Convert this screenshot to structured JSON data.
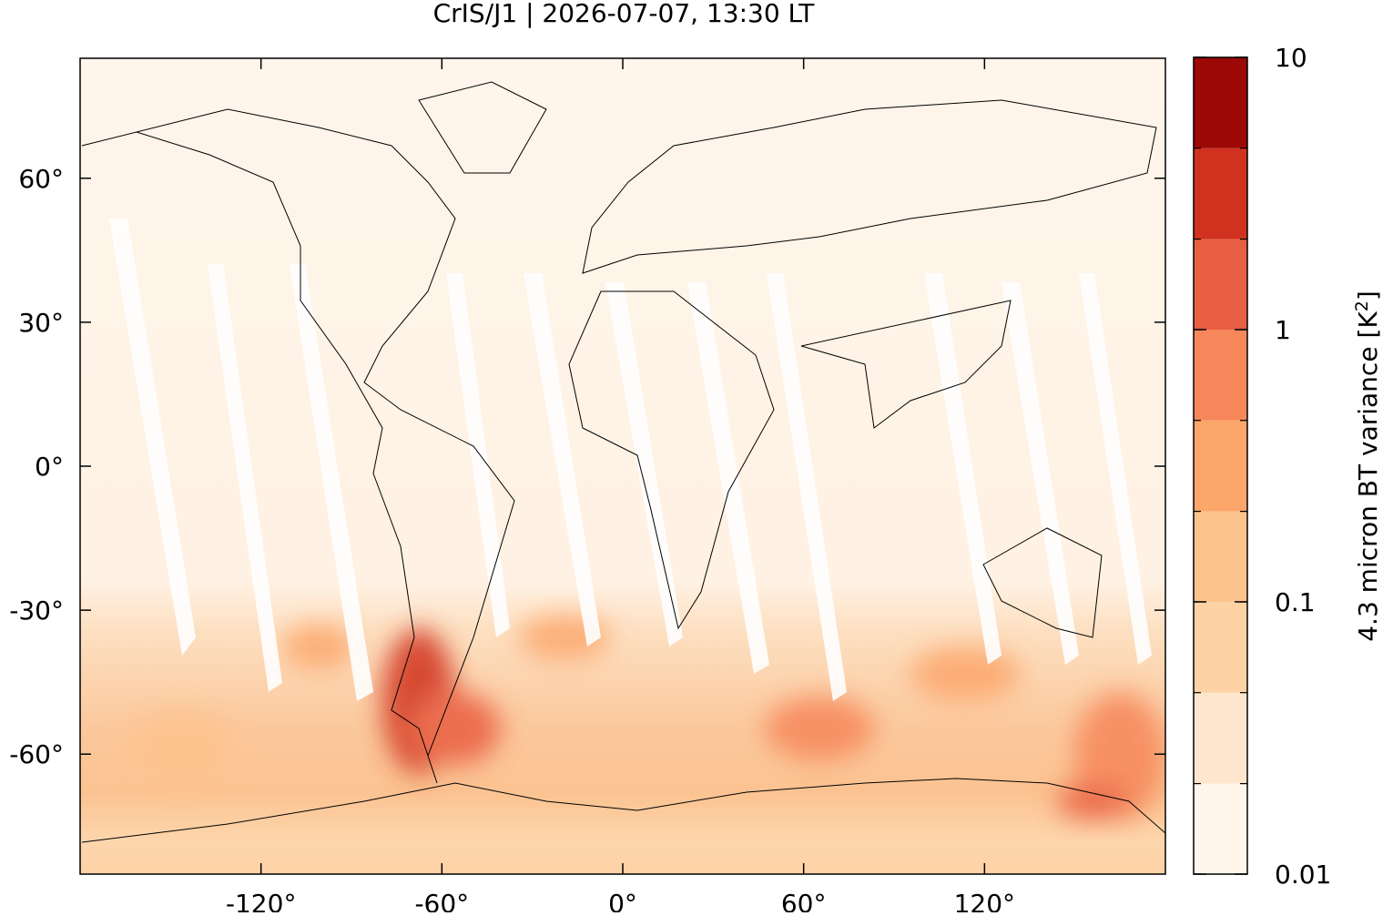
{
  "map": {
    "title": "CrIS/J1 | 2026-07-07, 13:30 LT",
    "xlim": [
      -180,
      180
    ],
    "ylim": [
      -85,
      85
    ],
    "xticks": [
      {
        "value": -120,
        "label": "-120°"
      },
      {
        "value": -60,
        "label": "-60°"
      },
      {
        "value": 0,
        "label": "0°"
      },
      {
        "value": 60,
        "label": "60°"
      },
      {
        "value": 120,
        "label": "120°"
      }
    ],
    "yticks": [
      {
        "value": 60,
        "label": "60°"
      },
      {
        "value": 30,
        "label": "30°"
      },
      {
        "value": 0,
        "label": "0°"
      },
      {
        "value": -30,
        "label": "-30°"
      },
      {
        "value": -60,
        "label": "-60°"
      }
    ]
  },
  "colorbar": {
    "label": "4.3 micron BT variance [K",
    "label_sup": "2",
    "label_end": "]",
    "scale": "log",
    "lim": [
      0.01,
      10
    ],
    "ticks": [
      0.01,
      0.1,
      1,
      10
    ],
    "levels": [
      0.01,
      0.0215,
      0.0464,
      0.1,
      0.215,
      0.464,
      1,
      2.15,
      4.64,
      10
    ],
    "colors": [
      "#fff5eb",
      "#fee6ce",
      "#fdd2a4",
      "#fdc38d",
      "#fca66b",
      "#f6875a",
      "#e95f43",
      "#d0321f",
      "#9b0806"
    ]
  }
}
